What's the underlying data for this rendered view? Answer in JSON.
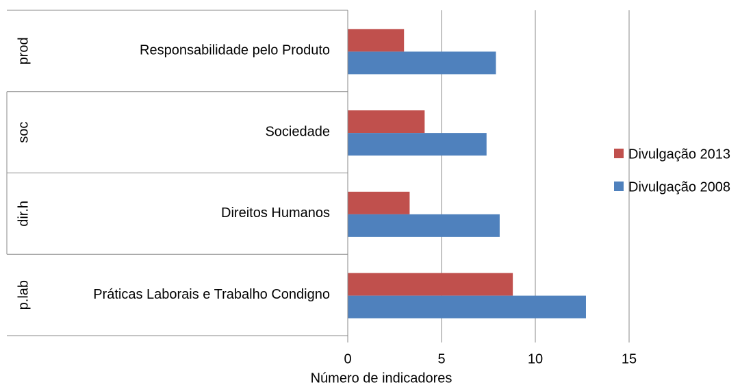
{
  "chart_data": {
    "type": "bar",
    "orientation": "horizontal",
    "groups": [
      "prod",
      "soc",
      "dir.h",
      "p.lab"
    ],
    "categories": [
      "Responsabilidade pelo Produto",
      "Sociedade",
      "Direitos Humanos",
      "Práticas Laborais e Trabalho Condigno"
    ],
    "series": [
      {
        "name": "Divulgação 2013",
        "color": "#c0504d",
        "values": [
          3.0,
          4.1,
          3.3,
          8.8
        ]
      },
      {
        "name": "Divulgação 2008",
        "color": "#4f81bd",
        "values": [
          7.9,
          7.4,
          8.1,
          12.7
        ]
      }
    ],
    "xlabel": "Número de indicadores",
    "xlim": [
      0,
      15
    ],
    "xticks": [
      0,
      5,
      10,
      15
    ],
    "grid": true,
    "legend": "right"
  }
}
